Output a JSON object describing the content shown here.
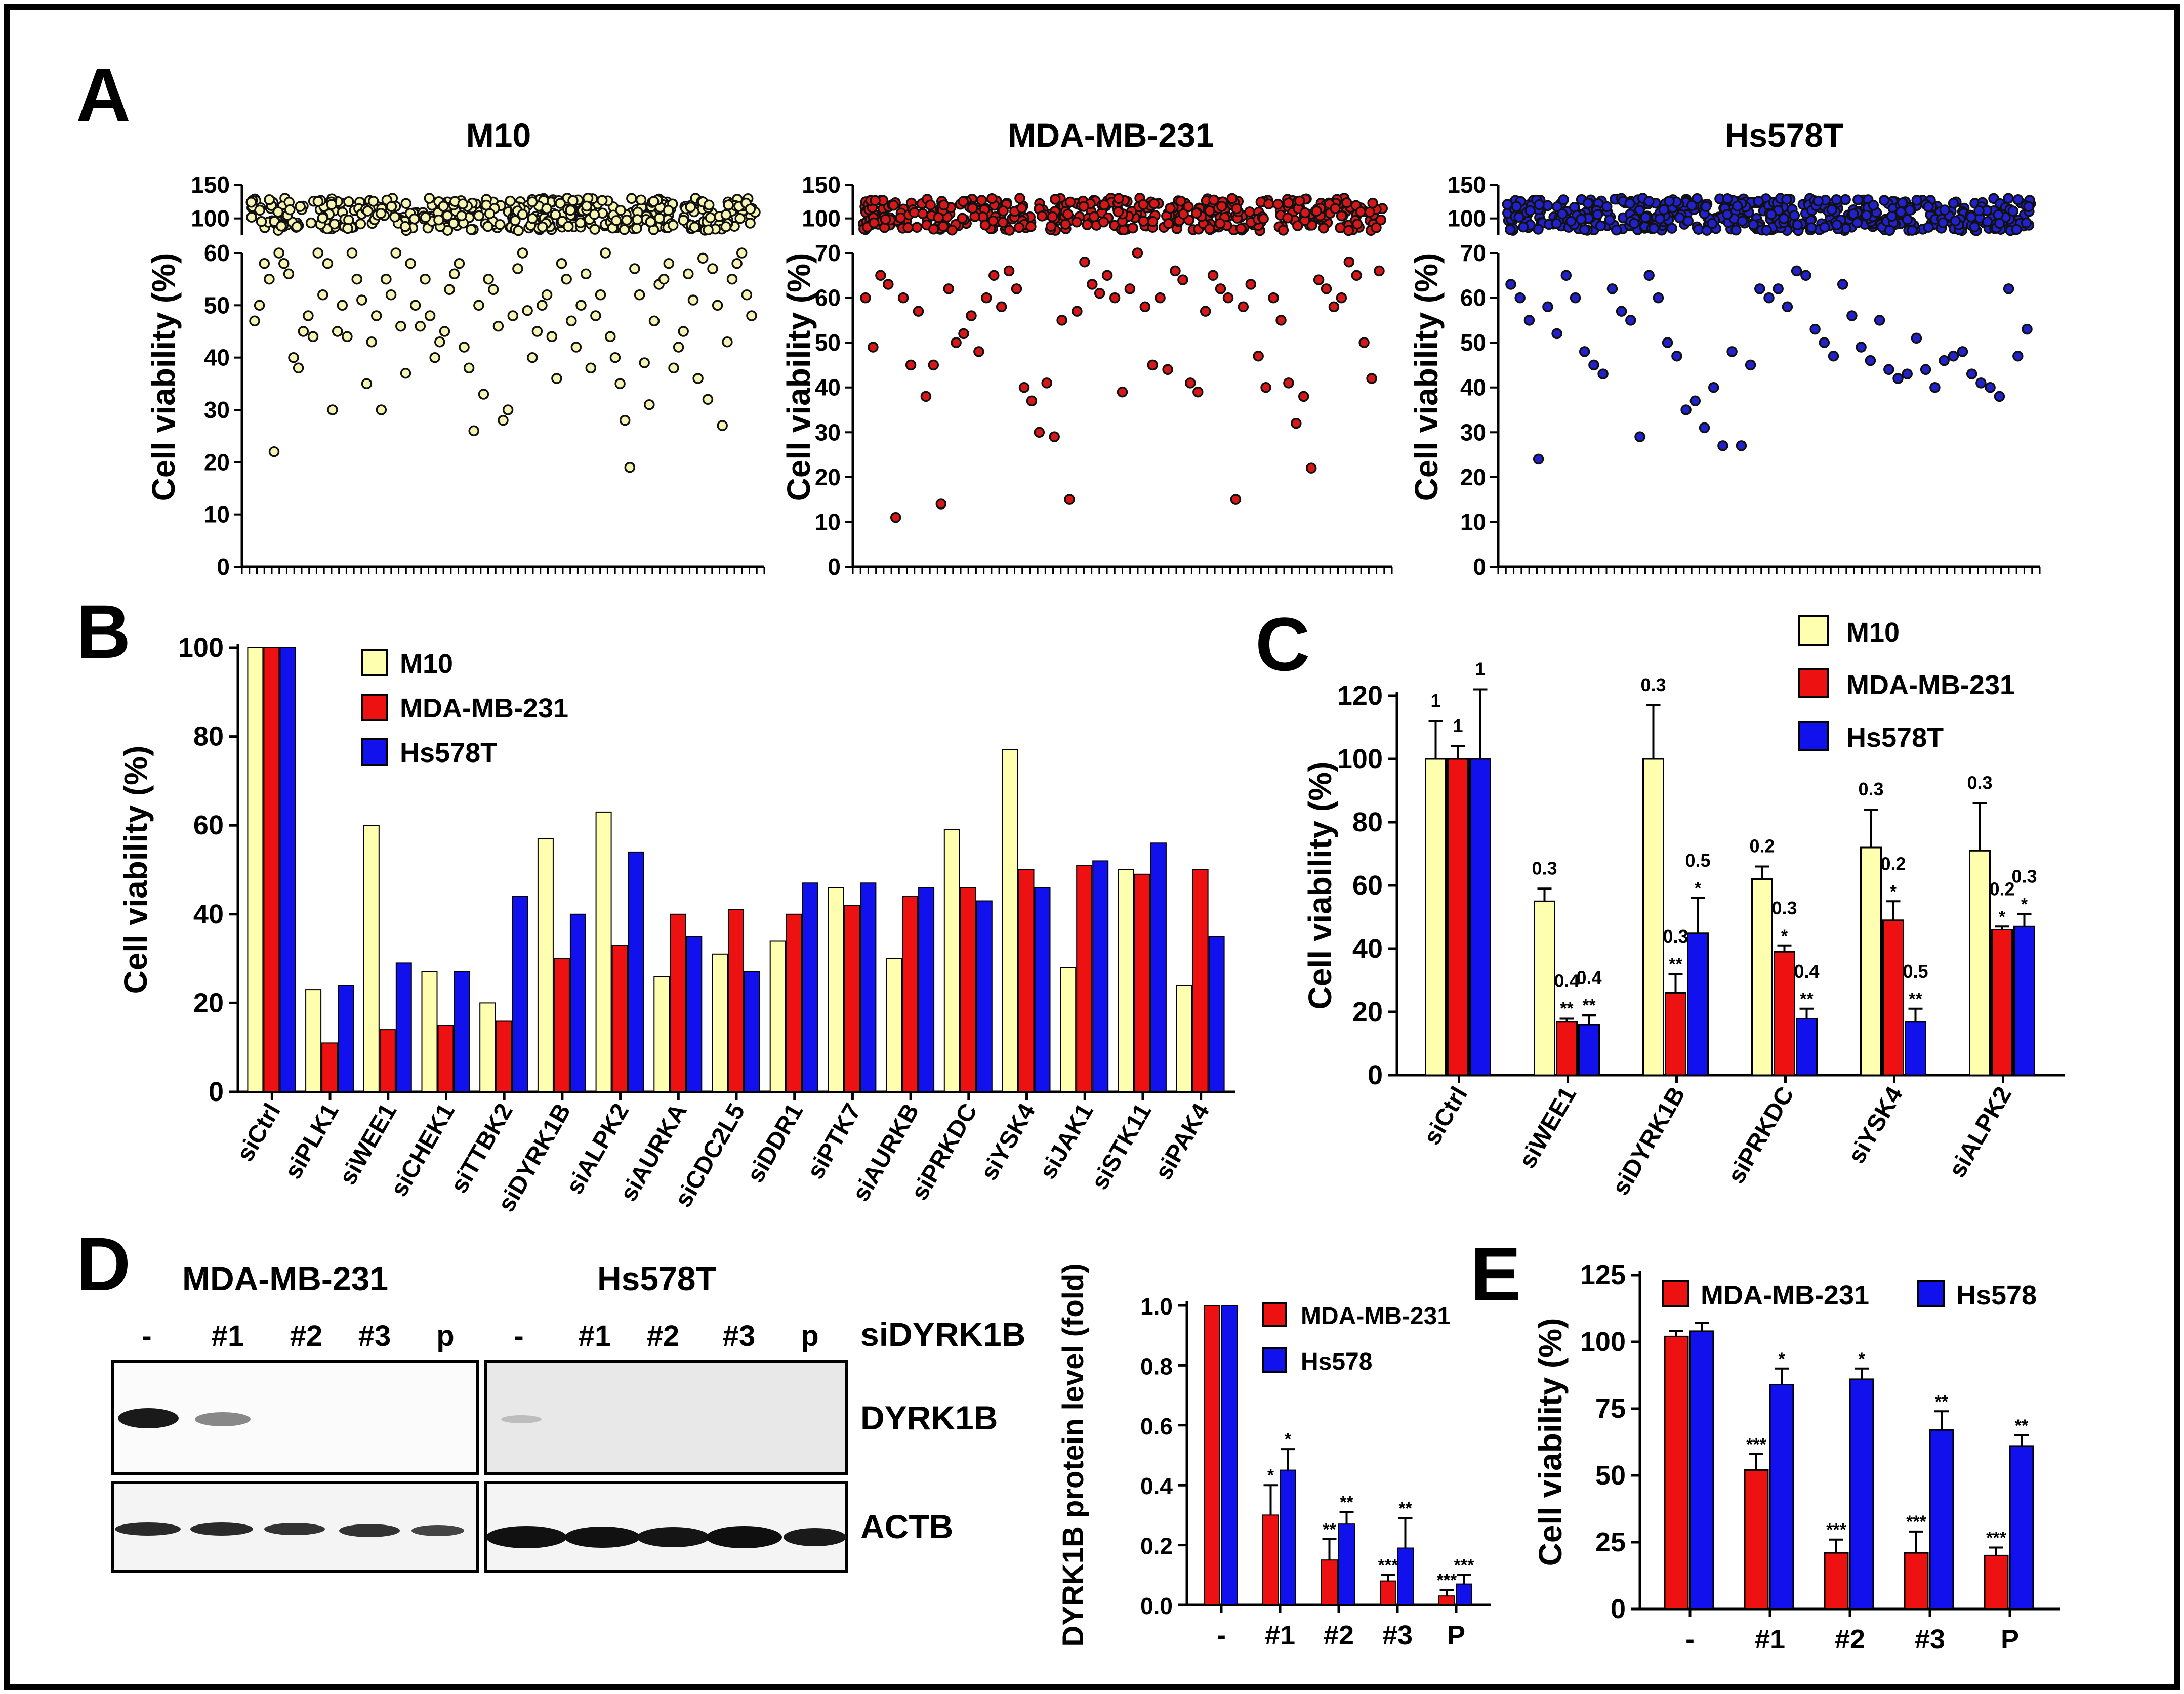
{
  "colors": {
    "m10": "#ffffb0",
    "mda": "#ee1111",
    "hs": "#1111ee",
    "axis": "#000000"
  },
  "panels": {
    "A": "A",
    "B": "B",
    "C": "C",
    "D": "D",
    "E": "E"
  },
  "chart_data": [
    {
      "id": "A1",
      "type": "scatter",
      "title": "M10",
      "ylabel": "Cell viability (%)",
      "yticks": [
        "0",
        "10",
        "20",
        "30",
        "40",
        "50",
        "60",
        "100",
        "150"
      ],
      "ylim": [
        0,
        150
      ],
      "axis_break": [
        60,
        75
      ],
      "values": [
        47,
        50,
        58,
        55,
        22,
        60,
        58,
        56,
        40,
        38,
        45,
        48,
        44,
        60,
        52,
        58,
        30,
        45,
        50,
        44,
        60,
        55,
        51,
        35,
        43,
        48,
        30,
        55,
        52,
        60,
        46,
        37,
        58,
        50,
        46,
        55,
        48,
        40,
        43,
        45,
        53,
        56,
        58,
        42,
        38,
        26,
        50,
        33,
        55,
        53,
        46,
        28,
        30,
        48,
        57,
        60,
        49,
        40,
        45,
        50,
        52,
        44,
        36,
        58,
        55,
        47,
        42,
        50,
        56,
        38,
        48,
        52,
        60,
        44,
        40,
        35,
        28,
        19,
        57,
        52,
        39,
        31,
        47,
        54,
        55,
        58,
        38,
        42,
        45,
        56,
        51,
        36,
        59,
        32,
        57,
        50,
        27,
        43,
        55,
        58,
        60,
        52,
        48
      ]
    },
    {
      "id": "A2",
      "type": "scatter",
      "title": "MDA-MB-231",
      "ylabel": "Cell viability (%)",
      "yticks": [
        "0",
        "10",
        "20",
        "30",
        "40",
        "50",
        "60",
        "70",
        "100",
        "150"
      ],
      "ylim": [
        0,
        150
      ],
      "axis_break": [
        70,
        85
      ],
      "values": [
        60,
        49,
        65,
        63,
        11,
        60,
        45,
        57,
        38,
        45,
        14,
        62,
        50,
        52,
        56,
        48,
        60,
        65,
        58,
        66,
        62,
        40,
        37,
        30,
        41,
        29,
        55,
        15,
        57,
        68,
        63,
        61,
        65,
        60,
        39,
        62,
        70,
        58,
        45,
        60,
        44,
        66,
        64,
        41,
        39,
        57,
        65,
        62,
        60,
        15,
        58,
        63,
        47,
        40,
        60,
        55,
        41,
        32,
        38,
        22,
        64,
        62,
        58,
        60,
        68,
        65,
        50,
        42,
        66
      ]
    },
    {
      "id": "A3",
      "type": "scatter",
      "title": "Hs578T",
      "ylabel": "Cell viability (%)",
      "yticks": [
        "0",
        "10",
        "20",
        "30",
        "40",
        "50",
        "60",
        "70",
        "100",
        "150"
      ],
      "ylim": [
        0,
        150
      ],
      "axis_break": [
        70,
        85
      ],
      "values": [
        63,
        60,
        55,
        24,
        58,
        52,
        65,
        60,
        48,
        45,
        43,
        62,
        57,
        55,
        29,
        65,
        60,
        50,
        47,
        35,
        37,
        31,
        40,
        27,
        48,
        27,
        45,
        62,
        60,
        62,
        58,
        66,
        65,
        53,
        50,
        47,
        63,
        56,
        49,
        46,
        55,
        44,
        42,
        43,
        51,
        44,
        40,
        46,
        47,
        48,
        43,
        41,
        40,
        38,
        62,
        47,
        53
      ]
    },
    {
      "id": "B",
      "type": "bar",
      "ylabel": "Cell viability (%)",
      "ylim": [
        0,
        100
      ],
      "yticks": [
        "0",
        "20",
        "40",
        "60",
        "80",
        "100"
      ],
      "categories": [
        "siCtrl",
        "siPLK1",
        "siWEE1",
        "siCHEK1",
        "siTTBK2",
        "siDYRK1B",
        "siALPK2",
        "siAURKA",
        "siCDC2L5",
        "siDDR1",
        "siPTK7",
        "siAURKB",
        "siPRKDC",
        "siYSK4",
        "siJAK1",
        "siSTK11",
        "siPAK4"
      ],
      "series": [
        {
          "name": "M10",
          "values": [
            100,
            23,
            60,
            27,
            20,
            57,
            63,
            26,
            31,
            34,
            46,
            30,
            59,
            77,
            28,
            50,
            24
          ]
        },
        {
          "name": "MDA-MB-231",
          "values": [
            100,
            11,
            14,
            15,
            16,
            30,
            33,
            40,
            41,
            40,
            42,
            44,
            46,
            50,
            51,
            49,
            50
          ]
        },
        {
          "name": "Hs578T",
          "values": [
            100,
            24,
            29,
            27,
            44,
            40,
            54,
            35,
            27,
            47,
            47,
            46,
            43,
            46,
            52,
            56,
            35
          ]
        }
      ]
    },
    {
      "id": "C",
      "type": "bar",
      "ylabel": "Cell viability (%)",
      "ylim": [
        0,
        120
      ],
      "yticks": [
        "0",
        "20",
        "40",
        "60",
        "80",
        "100",
        "120"
      ],
      "categories": [
        "siCtrl",
        "siWEE1",
        "siDYRK1B",
        "siPRKDC",
        "siYSK4",
        "siALPK2"
      ],
      "series": [
        {
          "name": "M10",
          "values": [
            100,
            55,
            100,
            62,
            72,
            71
          ],
          "errors": [
            12,
            4,
            17,
            4,
            12,
            15
          ],
          "ratios": [
            "1",
            "0.3",
            "0.3",
            "0.2",
            "0.3",
            "0.3"
          ],
          "stars": [
            "",
            "",
            "",
            "",
            "",
            ""
          ]
        },
        {
          "name": "MDA-MB-231",
          "values": [
            100,
            17,
            26,
            39,
            49,
            46
          ],
          "errors": [
            4,
            1,
            6,
            2,
            6,
            1
          ],
          "ratios": [
            "1",
            "0.4",
            "0.3",
            "0.3",
            "0.2",
            "0.2"
          ],
          "stars": [
            "",
            "**",
            "**",
            "*",
            "*",
            "*"
          ]
        },
        {
          "name": "Hs578T",
          "values": [
            100,
            16,
            45,
            18,
            17,
            47
          ],
          "errors": [
            22,
            3,
            11,
            3,
            4,
            4
          ],
          "ratios": [
            "1",
            "0.4",
            "0.5",
            "0.4",
            "0.5",
            "0.3"
          ],
          "stars": [
            "",
            "**",
            "*",
            "**",
            "**",
            "*"
          ]
        }
      ]
    },
    {
      "id": "D",
      "type": "bar",
      "ylabel": "DYRK1B protein level (fold)",
      "ylim": [
        0,
        1
      ],
      "yticks": [
        "0.0",
        "0.2",
        "0.4",
        "0.6",
        "0.8",
        "1.0"
      ],
      "categories": [
        "-",
        "#1",
        "#2",
        "#3",
        "P"
      ],
      "series": [
        {
          "name": "MDA-MB-231",
          "values": [
            1.0,
            0.3,
            0.15,
            0.08,
            0.03
          ],
          "errors": [
            0,
            0.1,
            0.07,
            0.02,
            0.02
          ],
          "stars": [
            "",
            "*",
            "**",
            "***",
            "***"
          ]
        },
        {
          "name": "Hs578",
          "values": [
            1.0,
            0.45,
            0.27,
            0.19,
            0.07
          ],
          "errors": [
            0,
            0.07,
            0.04,
            0.1,
            0.03
          ],
          "stars": [
            "",
            "*",
            "**",
            "**",
            "***"
          ]
        }
      ]
    },
    {
      "id": "E",
      "type": "bar",
      "ylabel": "Cell viability (%)",
      "ylim": [
        0,
        125
      ],
      "yticks": [
        "0",
        "25",
        "50",
        "75",
        "100",
        "125"
      ],
      "categories": [
        "-",
        "#1",
        "#2",
        "#3",
        "P"
      ],
      "series": [
        {
          "name": "MDA-MB-231",
          "values": [
            102,
            52,
            21,
            21,
            20
          ],
          "errors": [
            2,
            6,
            5,
            8,
            3
          ],
          "stars": [
            "",
            "***",
            "***",
            "***",
            "***"
          ]
        },
        {
          "name": "Hs578",
          "values": [
            104,
            84,
            86,
            67,
            61
          ],
          "errors": [
            3,
            6,
            4,
            7,
            4
          ],
          "stars": [
            "",
            "*",
            "*",
            "**",
            "**"
          ]
        }
      ]
    }
  ],
  "blot": {
    "groups": [
      "MDA-MB-231",
      "Hs578T"
    ],
    "lanes_left": [
      "-",
      "#1",
      "#2",
      "#3",
      "p"
    ],
    "lanes_right": [
      "-",
      "#1",
      "#2",
      "#3",
      "p"
    ],
    "treatment": "siDYRK1B",
    "rows": [
      "DYRK1B",
      "ACTB"
    ]
  }
}
